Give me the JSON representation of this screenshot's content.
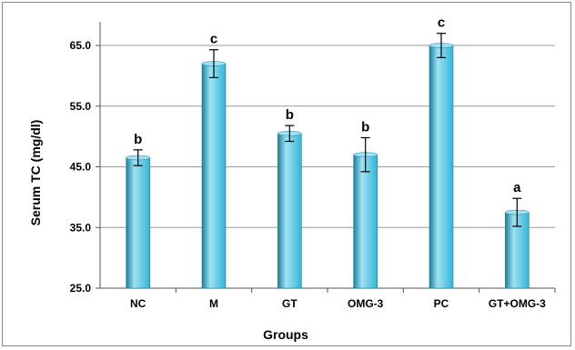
{
  "chart_data": {
    "type": "bar",
    "title": "",
    "xlabel": "Groups",
    "ylabel": "Serum TC (mg/dl)",
    "categories": [
      "NC",
      "M",
      "GT",
      "OMG-3",
      "PC",
      "GT+OMG-3"
    ],
    "values": [
      46.5,
      62.0,
      50.5,
      47.0,
      65.0,
      37.5
    ],
    "error": [
      1.3,
      2.3,
      1.3,
      2.8,
      2.0,
      2.3
    ],
    "significance_letters": [
      "b",
      "c",
      "b",
      "b",
      "c",
      "a"
    ],
    "ylim": [
      25.0,
      68.0
    ],
    "yticks": [
      25.0,
      35.0,
      45.0,
      55.0,
      65.0
    ],
    "ytick_labels": [
      "25.0",
      "35.0",
      "45.0",
      "55.0",
      "65.0"
    ],
    "grid": true,
    "legend": "none",
    "bar_color": "#35b4d6",
    "bar_highlight": "#9fe2f3",
    "bar_shadow": "#1b7f9c",
    "grid_color": "#9a9a9a"
  }
}
